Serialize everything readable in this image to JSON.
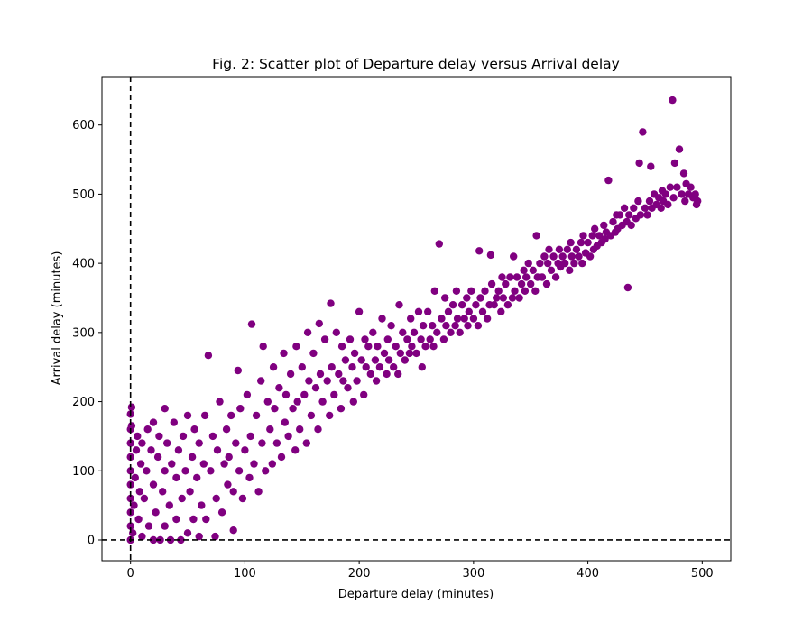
{
  "chart_data": {
    "type": "scatter",
    "title": "Fig. 2: Scatter plot of Departure delay versus Arrival delay",
    "xlabel": "Departure delay (minutes)",
    "ylabel": "Arrival delay (minutes)",
    "xlim": [
      -25,
      525
    ],
    "ylim": [
      -30,
      670
    ],
    "xticks": [
      0,
      100,
      200,
      300,
      400,
      500
    ],
    "yticks": [
      0,
      100,
      200,
      300,
      400,
      500,
      600
    ],
    "grid": false,
    "legend": "none",
    "marker_color": "#800080",
    "reference_lines": [
      {
        "orientation": "vertical",
        "value": 0,
        "style": "dashed",
        "color": "#000000"
      },
      {
        "orientation": "horizontal",
        "value": 0,
        "style": "dashed",
        "color": "#000000"
      }
    ],
    "series": [
      {
        "points": [
          [
            0,
            0
          ],
          [
            0,
            20
          ],
          [
            0,
            40
          ],
          [
            0,
            60
          ],
          [
            0,
            80
          ],
          [
            0,
            100
          ],
          [
            0,
            120
          ],
          [
            0,
            140
          ],
          [
            0,
            160
          ],
          [
            0,
            182
          ],
          [
            1,
            192
          ],
          [
            1,
            165
          ],
          [
            2,
            10
          ],
          [
            3,
            50
          ],
          [
            4,
            90
          ],
          [
            5,
            130
          ],
          [
            6,
            150
          ],
          [
            7,
            30
          ],
          [
            8,
            70
          ],
          [
            9,
            110
          ],
          [
            10,
            5
          ],
          [
            10,
            140
          ],
          [
            12,
            60
          ],
          [
            14,
            100
          ],
          [
            15,
            160
          ],
          [
            16,
            20
          ],
          [
            18,
            130
          ],
          [
            20,
            0
          ],
          [
            20,
            80
          ],
          [
            20,
            170
          ],
          [
            22,
            40
          ],
          [
            24,
            120
          ],
          [
            25,
            150
          ],
          [
            26,
            0
          ],
          [
            28,
            70
          ],
          [
            30,
            20
          ],
          [
            30,
            100
          ],
          [
            30,
            190
          ],
          [
            32,
            140
          ],
          [
            34,
            50
          ],
          [
            35,
            0
          ],
          [
            36,
            110
          ],
          [
            38,
            170
          ],
          [
            40,
            30
          ],
          [
            40,
            90
          ],
          [
            42,
            130
          ],
          [
            44,
            0
          ],
          [
            45,
            60
          ],
          [
            46,
            150
          ],
          [
            48,
            100
          ],
          [
            50,
            10
          ],
          [
            50,
            180
          ],
          [
            52,
            70
          ],
          [
            54,
            120
          ],
          [
            55,
            30
          ],
          [
            56,
            160
          ],
          [
            58,
            90
          ],
          [
            60,
            5
          ],
          [
            60,
            140
          ],
          [
            62,
            50
          ],
          [
            64,
            110
          ],
          [
            65,
            180
          ],
          [
            66,
            30
          ],
          [
            68,
            267
          ],
          [
            70,
            100
          ],
          [
            72,
            150
          ],
          [
            74,
            5
          ],
          [
            75,
            60
          ],
          [
            76,
            130
          ],
          [
            78,
            200
          ],
          [
            80,
            40
          ],
          [
            82,
            110
          ],
          [
            84,
            160
          ],
          [
            85,
            80
          ],
          [
            86,
            120
          ],
          [
            88,
            180
          ],
          [
            90,
            14
          ],
          [
            90,
            70
          ],
          [
            92,
            140
          ],
          [
            94,
            245
          ],
          [
            95,
            100
          ],
          [
            96,
            190
          ],
          [
            98,
            60
          ],
          [
            100,
            130
          ],
          [
            102,
            210
          ],
          [
            104,
            90
          ],
          [
            105,
            150
          ],
          [
            106,
            312
          ],
          [
            108,
            110
          ],
          [
            110,
            180
          ],
          [
            112,
            70
          ],
          [
            114,
            230
          ],
          [
            115,
            140
          ],
          [
            116,
            280
          ],
          [
            118,
            100
          ],
          [
            120,
            200
          ],
          [
            122,
            160
          ],
          [
            124,
            110
          ],
          [
            125,
            250
          ],
          [
            126,
            190
          ],
          [
            128,
            140
          ],
          [
            130,
            220
          ],
          [
            132,
            120
          ],
          [
            134,
            270
          ],
          [
            135,
            170
          ],
          [
            136,
            210
          ],
          [
            138,
            150
          ],
          [
            140,
            240
          ],
          [
            142,
            190
          ],
          [
            144,
            130
          ],
          [
            145,
            280
          ],
          [
            146,
            200
          ],
          [
            148,
            160
          ],
          [
            150,
            250
          ],
          [
            152,
            210
          ],
          [
            154,
            140
          ],
          [
            155,
            300
          ],
          [
            156,
            230
          ],
          [
            158,
            180
          ],
          [
            160,
            270
          ],
          [
            162,
            220
          ],
          [
            164,
            160
          ],
          [
            165,
            313
          ],
          [
            166,
            240
          ],
          [
            168,
            200
          ],
          [
            170,
            290
          ],
          [
            172,
            230
          ],
          [
            174,
            180
          ],
          [
            175,
            342
          ],
          [
            176,
            250
          ],
          [
            178,
            210
          ],
          [
            180,
            300
          ],
          [
            182,
            240
          ],
          [
            184,
            190
          ],
          [
            185,
            280
          ],
          [
            186,
            230
          ],
          [
            188,
            260
          ],
          [
            190,
            220
          ],
          [
            192,
            290
          ],
          [
            194,
            250
          ],
          [
            195,
            200
          ],
          [
            196,
            270
          ],
          [
            198,
            230
          ],
          [
            200,
            330
          ],
          [
            202,
            260
          ],
          [
            204,
            210
          ],
          [
            205,
            290
          ],
          [
            206,
            250
          ],
          [
            208,
            280
          ],
          [
            210,
            240
          ],
          [
            212,
            300
          ],
          [
            214,
            260
          ],
          [
            215,
            230
          ],
          [
            216,
            280
          ],
          [
            218,
            250
          ],
          [
            220,
            320
          ],
          [
            222,
            270
          ],
          [
            224,
            240
          ],
          [
            225,
            290
          ],
          [
            226,
            260
          ],
          [
            228,
            310
          ],
          [
            230,
            250
          ],
          [
            232,
            280
          ],
          [
            234,
            240
          ],
          [
            235,
            340
          ],
          [
            236,
            270
          ],
          [
            238,
            300
          ],
          [
            240,
            260
          ],
          [
            242,
            290
          ],
          [
            244,
            270
          ],
          [
            245,
            320
          ],
          [
            246,
            280
          ],
          [
            248,
            300
          ],
          [
            250,
            270
          ],
          [
            252,
            330
          ],
          [
            254,
            290
          ],
          [
            255,
            250
          ],
          [
            256,
            310
          ],
          [
            258,
            280
          ],
          [
            260,
            330
          ],
          [
            262,
            290
          ],
          [
            264,
            310
          ],
          [
            265,
            280
          ],
          [
            266,
            360
          ],
          [
            268,
            300
          ],
          [
            270,
            428
          ],
          [
            272,
            320
          ],
          [
            274,
            290
          ],
          [
            275,
            350
          ],
          [
            276,
            310
          ],
          [
            278,
            330
          ],
          [
            280,
            300
          ],
          [
            282,
            340
          ],
          [
            284,
            310
          ],
          [
            285,
            360
          ],
          [
            286,
            320
          ],
          [
            288,
            300
          ],
          [
            290,
            340
          ],
          [
            292,
            320
          ],
          [
            294,
            350
          ],
          [
            295,
            310
          ],
          [
            296,
            330
          ],
          [
            298,
            360
          ],
          [
            300,
            320
          ],
          [
            302,
            340
          ],
          [
            304,
            310
          ],
          [
            305,
            418
          ],
          [
            306,
            350
          ],
          [
            308,
            330
          ],
          [
            310,
            360
          ],
          [
            312,
            320
          ],
          [
            314,
            340
          ],
          [
            315,
            412
          ],
          [
            316,
            370
          ],
          [
            318,
            340
          ],
          [
            320,
            350
          ],
          [
            322,
            360
          ],
          [
            324,
            330
          ],
          [
            325,
            380
          ],
          [
            326,
            350
          ],
          [
            328,
            370
          ],
          [
            330,
            340
          ],
          [
            332,
            380
          ],
          [
            334,
            350
          ],
          [
            335,
            410
          ],
          [
            336,
            360
          ],
          [
            338,
            380
          ],
          [
            340,
            350
          ],
          [
            342,
            370
          ],
          [
            344,
            390
          ],
          [
            345,
            360
          ],
          [
            346,
            380
          ],
          [
            348,
            400
          ],
          [
            350,
            370
          ],
          [
            352,
            390
          ],
          [
            354,
            360
          ],
          [
            355,
            440
          ],
          [
            356,
            380
          ],
          [
            358,
            400
          ],
          [
            360,
            380
          ],
          [
            362,
            410
          ],
          [
            364,
            370
          ],
          [
            365,
            400
          ],
          [
            366,
            420
          ],
          [
            368,
            390
          ],
          [
            370,
            410
          ],
          [
            372,
            380
          ],
          [
            374,
            400
          ],
          [
            375,
            420
          ],
          [
            376,
            395
          ],
          [
            378,
            410
          ],
          [
            380,
            400
          ],
          [
            382,
            420
          ],
          [
            384,
            390
          ],
          [
            385,
            430
          ],
          [
            386,
            410
          ],
          [
            388,
            400
          ],
          [
            390,
            420
          ],
          [
            392,
            410
          ],
          [
            394,
            430
          ],
          [
            395,
            400
          ],
          [
            396,
            440
          ],
          [
            398,
            415
          ],
          [
            400,
            430
          ],
          [
            402,
            410
          ],
          [
            404,
            440
          ],
          [
            405,
            420
          ],
          [
            406,
            450
          ],
          [
            408,
            425
          ],
          [
            410,
            440
          ],
          [
            412,
            430
          ],
          [
            414,
            455
          ],
          [
            415,
            435
          ],
          [
            416,
            445
          ],
          [
            418,
            520
          ],
          [
            420,
            440
          ],
          [
            422,
            460
          ],
          [
            424,
            445
          ],
          [
            425,
            470
          ],
          [
            426,
            450
          ],
          [
            428,
            470
          ],
          [
            430,
            455
          ],
          [
            432,
            480
          ],
          [
            434,
            460
          ],
          [
            435,
            365
          ],
          [
            436,
            470
          ],
          [
            438,
            455
          ],
          [
            440,
            480
          ],
          [
            442,
            465
          ],
          [
            444,
            490
          ],
          [
            445,
            545
          ],
          [
            446,
            470
          ],
          [
            448,
            590
          ],
          [
            450,
            480
          ],
          [
            452,
            470
          ],
          [
            454,
            490
          ],
          [
            455,
            540
          ],
          [
            456,
            480
          ],
          [
            458,
            500
          ],
          [
            460,
            485
          ],
          [
            462,
            495
          ],
          [
            464,
            480
          ],
          [
            465,
            505
          ],
          [
            466,
            490
          ],
          [
            468,
            500
          ],
          [
            470,
            485
          ],
          [
            472,
            510
          ],
          [
            474,
            636
          ],
          [
            475,
            495
          ],
          [
            476,
            545
          ],
          [
            478,
            510
          ],
          [
            480,
            565
          ],
          [
            482,
            500
          ],
          [
            484,
            530
          ],
          [
            485,
            490
          ],
          [
            486,
            515
          ],
          [
            488,
            500
          ],
          [
            490,
            510
          ],
          [
            492,
            495
          ],
          [
            494,
            500
          ],
          [
            495,
            485
          ],
          [
            496,
            490
          ]
        ]
      }
    ]
  }
}
